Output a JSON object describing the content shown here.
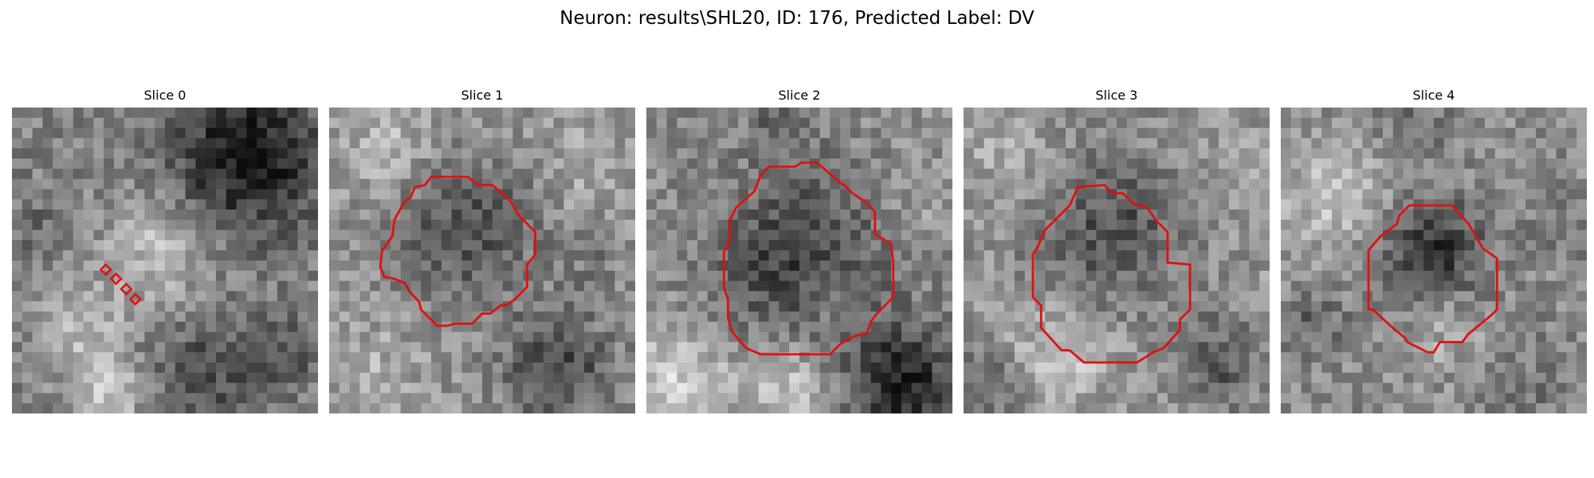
{
  "figure": {
    "title": "Neuron: results\\SHL20, ID: 176, Predicted Label: DV"
  },
  "colors": {
    "contour": "#e01010"
  },
  "panels": [
    {
      "title": "Slice 0",
      "marker": "point-markers"
    },
    {
      "title": "Slice 1",
      "marker": "contour"
    },
    {
      "title": "Slice 2",
      "marker": "contour"
    },
    {
      "title": "Slice 3",
      "marker": "contour"
    },
    {
      "title": "Slice 4",
      "marker": "contour"
    }
  ]
}
